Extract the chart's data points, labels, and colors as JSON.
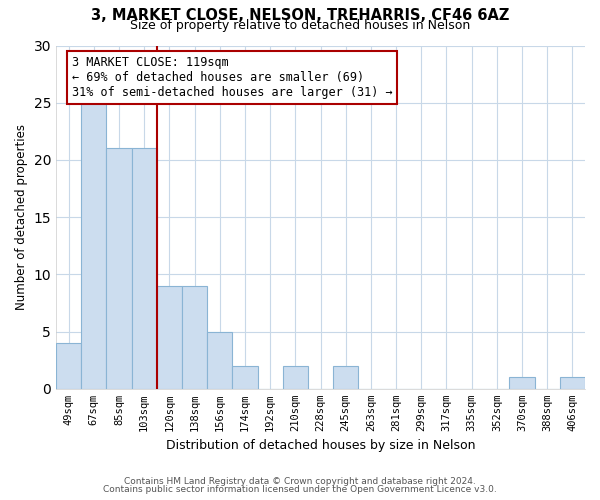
{
  "title": "3, MARKET CLOSE, NELSON, TREHARRIS, CF46 6AZ",
  "subtitle": "Size of property relative to detached houses in Nelson",
  "xlabel": "Distribution of detached houses by size in Nelson",
  "ylabel": "Number of detached properties",
  "bar_labels": [
    "49sqm",
    "67sqm",
    "85sqm",
    "103sqm",
    "120sqm",
    "138sqm",
    "156sqm",
    "174sqm",
    "192sqm",
    "210sqm",
    "228sqm",
    "245sqm",
    "263sqm",
    "281sqm",
    "299sqm",
    "317sqm",
    "335sqm",
    "352sqm",
    "370sqm",
    "388sqm",
    "406sqm"
  ],
  "bar_values": [
    4,
    25,
    21,
    21,
    9,
    9,
    5,
    2,
    0,
    2,
    0,
    2,
    0,
    0,
    0,
    0,
    0,
    0,
    1,
    0,
    1
  ],
  "bar_color": "#ccddef",
  "bar_edge_color": "#8ab4d4",
  "vline_x": 3.5,
  "vline_color": "#aa0000",
  "annotation_text": "3 MARKET CLOSE: 119sqm\n← 69% of detached houses are smaller (69)\n31% of semi-detached houses are larger (31) →",
  "annotation_box_color": "white",
  "annotation_box_edge": "#aa0000",
  "ylim": [
    0,
    30
  ],
  "yticks": [
    0,
    5,
    10,
    15,
    20,
    25,
    30
  ],
  "footer_line1": "Contains HM Land Registry data © Crown copyright and database right 2024.",
  "footer_line2": "Contains public sector information licensed under the Open Government Licence v3.0.",
  "bg_color": "white",
  "grid_color": "#c8d8e8"
}
